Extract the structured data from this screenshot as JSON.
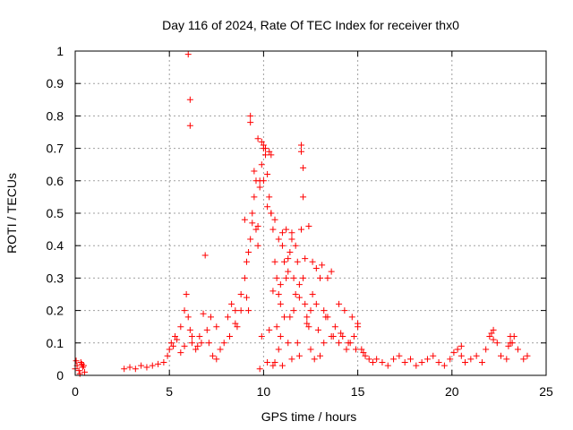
{
  "chart_data": {
    "type": "scatter",
    "title": "Day 116 of 2024, Rate Of TEC Index for receiver thx0",
    "xlabel": "GPS time / hours",
    "ylabel": "ROTI / TECUs",
    "xlim": [
      0,
      25
    ],
    "ylim": [
      0,
      1
    ],
    "xticks": [
      "0",
      "5",
      "10",
      "15",
      "20",
      "25"
    ],
    "yticks": [
      "0",
      "0.1",
      "0.2",
      "0.3",
      "0.4",
      "0.5",
      "0.6",
      "0.7",
      "0.8",
      "0.9",
      "1"
    ],
    "grid": true,
    "marker": "+",
    "color": "#ff0000",
    "series": [
      {
        "x": [
          0.0,
          0.1,
          0.2,
          0.3,
          0.35,
          0.4,
          0.5,
          0.05,
          0.25,
          0.45,
          2.6,
          2.9,
          3.2,
          3.5,
          3.8,
          4.1,
          4.4,
          4.7,
          4.9,
          5.0,
          5.1,
          5.2,
          5.3,
          5.4,
          5.6,
          5.8,
          5.9,
          6.0,
          6.1,
          6.2,
          6.4,
          6.6,
          6.8,
          7.0,
          7.1,
          7.3,
          7.5,
          7.7,
          7.9,
          8.1,
          8.3,
          8.5,
          8.6,
          8.8,
          9.0,
          9.1,
          9.2,
          9.3,
          9.4,
          9.5,
          9.6,
          9.7,
          9.8,
          9.9,
          10.0,
          10.1,
          10.2,
          10.3,
          10.4,
          10.5,
          10.6,
          10.7,
          10.8,
          10.9,
          11.0,
          11.1,
          11.2,
          11.3,
          11.4,
          11.5,
          11.6,
          11.7,
          11.8,
          11.9,
          12.0,
          12.1,
          12.2,
          12.3,
          12.4,
          12.5,
          12.6,
          12.8,
          13.0,
          13.2,
          13.4,
          13.6,
          13.8,
          14.0,
          14.2,
          14.4,
          14.6,
          14.8,
          15.0,
          15.2,
          15.4,
          15.6,
          15.8,
          16.0,
          16.3,
          16.6,
          16.9,
          17.2,
          17.5,
          17.8,
          18.1,
          18.4,
          18.7,
          19.0,
          19.3,
          19.6,
          19.9,
          20.1,
          20.3,
          20.5,
          20.7,
          21.0,
          21.3,
          21.6,
          21.8,
          22.0,
          22.2,
          22.4,
          22.6,
          22.9,
          23.1,
          23.3,
          23.5,
          23.8,
          24.0,
          6.0,
          6.1,
          6.1,
          6.9,
          9.3,
          9.3,
          9.7,
          9.9,
          10.0,
          10.1,
          10.3,
          10.4,
          12.0,
          12.0,
          12.1,
          12.1,
          9.5,
          9.6,
          9.8,
          10.2,
          10.6,
          11.2,
          11.5,
          12.4,
          12.6,
          9.0,
          9.4,
          9.7,
          10.0,
          10.4,
          10.8,
          11.0,
          11.3,
          11.7,
          12.2,
          12.8,
          13.1,
          13.4,
          13.6,
          14.0,
          14.3,
          14.7,
          15.0,
          5.6,
          5.8,
          6.2,
          6.5,
          6.7,
          7.2,
          7.5,
          8.2,
          8.5,
          8.8,
          9.1,
          10.5,
          10.9,
          11.1,
          11.6,
          11.9,
          12.3,
          12.9,
          13.3,
          13.7,
          14.1,
          14.5,
          14.9,
          15.3,
          20.5,
          22.1,
          22.2,
          23.0,
          23.1,
          23.2,
          10.7,
          10.9,
          11.4,
          11.8,
          12.5,
          13.0,
          13.2,
          9.2,
          9.9,
          10.3,
          10.8,
          11.3,
          11.9,
          12.7,
          10.6,
          11.0,
          11.5,
          9.8,
          10.5,
          10.2
        ],
        "y": [
          0.02,
          0.03,
          0.015,
          0.04,
          0.035,
          0.025,
          0.01,
          0.045,
          0.005,
          0.03,
          0.02,
          0.025,
          0.02,
          0.03,
          0.025,
          0.03,
          0.035,
          0.04,
          0.06,
          0.08,
          0.1,
          0.09,
          0.12,
          0.11,
          0.15,
          0.2,
          0.25,
          0.18,
          0.14,
          0.1,
          0.08,
          0.12,
          0.19,
          0.14,
          0.1,
          0.06,
          0.05,
          0.08,
          0.1,
          0.18,
          0.22,
          0.2,
          0.15,
          0.25,
          0.3,
          0.35,
          0.38,
          0.42,
          0.5,
          0.55,
          0.45,
          0.4,
          0.6,
          0.65,
          0.7,
          0.68,
          0.62,
          0.55,
          0.5,
          0.45,
          0.35,
          0.3,
          0.25,
          0.28,
          0.4,
          0.35,
          0.3,
          0.32,
          0.38,
          0.42,
          0.3,
          0.25,
          0.35,
          0.28,
          0.45,
          0.3,
          0.22,
          0.18,
          0.15,
          0.2,
          0.25,
          0.22,
          0.3,
          0.2,
          0.18,
          0.12,
          0.15,
          0.1,
          0.12,
          0.08,
          0.1,
          0.12,
          0.15,
          0.08,
          0.06,
          0.05,
          0.04,
          0.05,
          0.04,
          0.03,
          0.05,
          0.06,
          0.04,
          0.05,
          0.03,
          0.04,
          0.05,
          0.06,
          0.04,
          0.03,
          0.05,
          0.07,
          0.08,
          0.06,
          0.04,
          0.05,
          0.06,
          0.04,
          0.08,
          0.12,
          0.14,
          0.1,
          0.06,
          0.05,
          0.1,
          0.12,
          0.08,
          0.05,
          0.06,
          0.99,
          0.85,
          0.77,
          0.37,
          0.8,
          0.78,
          0.73,
          0.72,
          0.71,
          0.7,
          0.69,
          0.68,
          0.71,
          0.69,
          0.64,
          0.55,
          0.63,
          0.6,
          0.58,
          0.52,
          0.48,
          0.45,
          0.44,
          0.46,
          0.35,
          0.48,
          0.47,
          0.46,
          0.6,
          0.5,
          0.42,
          0.44,
          0.36,
          0.4,
          0.36,
          0.33,
          0.34,
          0.3,
          0.32,
          0.22,
          0.2,
          0.18,
          0.16,
          0.07,
          0.09,
          0.12,
          0.09,
          0.1,
          0.18,
          0.15,
          0.12,
          0.16,
          0.2,
          0.24,
          0.26,
          0.22,
          0.18,
          0.2,
          0.24,
          0.16,
          0.14,
          0.18,
          0.12,
          0.13,
          0.1,
          0.08,
          0.07,
          0.09,
          0.13,
          0.11,
          0.09,
          0.12,
          0.1,
          0.15,
          0.12,
          0.18,
          0.1,
          0.08,
          0.06,
          0.1,
          0.2,
          0.12,
          0.14,
          0.08,
          0.1,
          0.06,
          0.05,
          0.04,
          0.03,
          0.05,
          0.02,
          0.03,
          0.04
        ]
      }
    ]
  }
}
